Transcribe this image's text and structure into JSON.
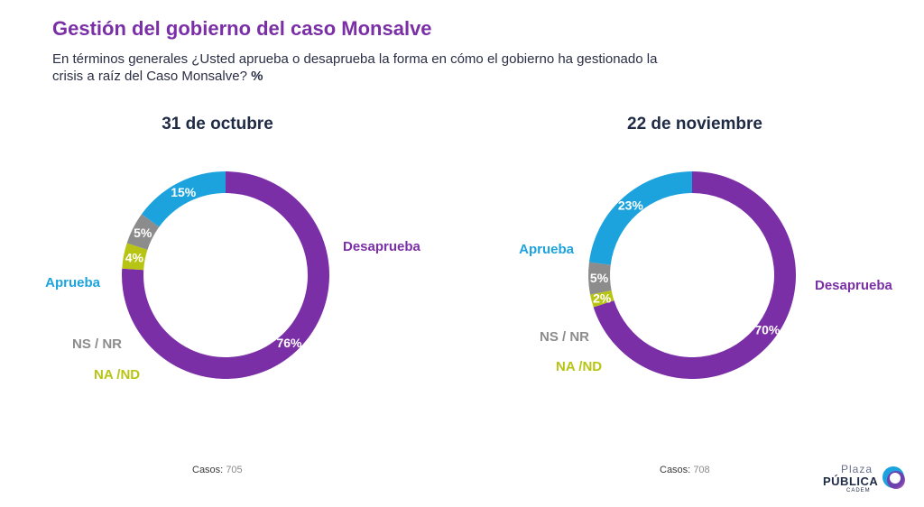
{
  "header": {
    "title": "Gestión del gobierno del caso Monsalve",
    "subtitle": "En términos generales ¿Usted aprueba o desaprueba la forma en cómo el gobierno ha gestionado la crisis a raíz del Caso Monsalve?",
    "subtitle_unit": "%"
  },
  "chart_data": [
    {
      "type": "pie",
      "title": "31 de octubre",
      "slices": [
        {
          "label": "Desaprueba",
          "value": 76,
          "display": "76%",
          "color": "#7b2fa6"
        },
        {
          "label": "NA /ND",
          "value": 4,
          "display": "4%",
          "color": "#b8c414"
        },
        {
          "label": "NS / NR",
          "value": 5,
          "display": "5%",
          "color": "#8c8c8c"
        },
        {
          "label": "Aprueba",
          "value": 15,
          "display": "15%",
          "color": "#1ca3dd"
        }
      ],
      "casos_label": "Casos:",
      "casos_value": "705"
    },
    {
      "type": "pie",
      "title": "22 de noviembre",
      "slices": [
        {
          "label": "Desaprueba",
          "value": 70,
          "display": "70%",
          "color": "#7b2fa6"
        },
        {
          "label": "NA /ND",
          "value": 2,
          "display": "2%",
          "color": "#b8c414"
        },
        {
          "label": "NS / NR",
          "value": 5,
          "display": "5%",
          "color": "#8c8c8c"
        },
        {
          "label": "Aprueba",
          "value": 23,
          "display": "23%",
          "color": "#1ca3dd"
        }
      ],
      "casos_label": "Casos:",
      "casos_value": "708"
    }
  ],
  "logo": {
    "line1": "Plaza",
    "line2": "PÚBLICA",
    "line3": "CADEM",
    "colors": [
      "#1ca3dd",
      "#7b2fa6"
    ]
  }
}
